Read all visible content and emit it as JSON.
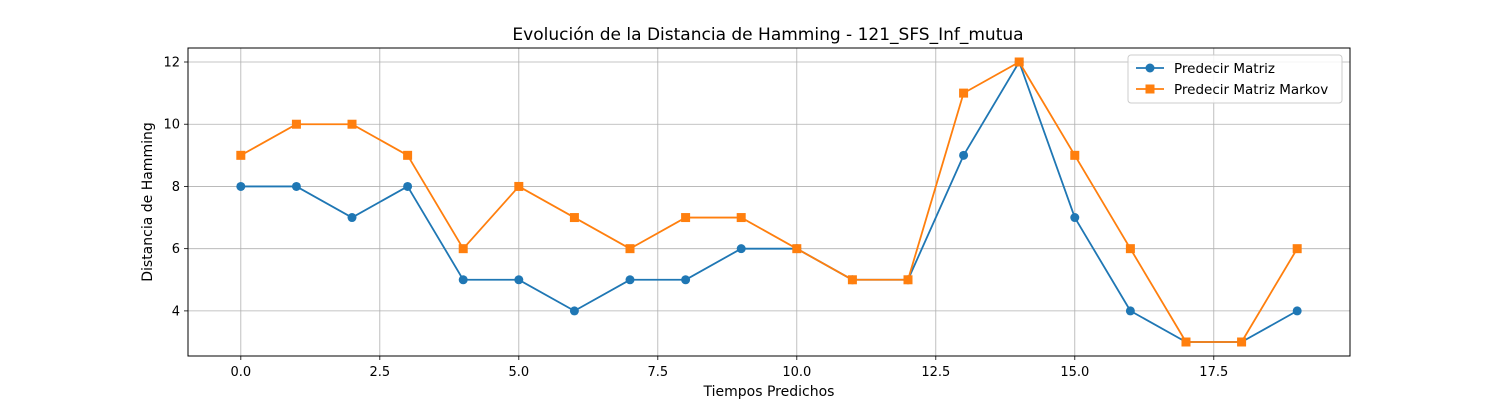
{
  "chart_data": {
    "type": "line",
    "title": "Evolución de la Distancia de Hamming - 121_SFS_Inf_mutua",
    "xlabel": "Tiempos Predichos",
    "ylabel": "Distancia de Hamming",
    "xlim": [
      -0.95,
      19.95
    ],
    "ylim": [
      2.55,
      12.45
    ],
    "xticks": [
      0.0,
      2.5,
      5.0,
      7.5,
      10.0,
      12.5,
      15.0,
      17.5
    ],
    "xtick_labels": [
      "0.0",
      "2.5",
      "5.0",
      "7.5",
      "10.0",
      "12.5",
      "15.0",
      "17.5"
    ],
    "yticks": [
      4,
      6,
      8,
      10,
      12
    ],
    "ytick_labels": [
      "4",
      "6",
      "8",
      "10",
      "12"
    ],
    "grid": true,
    "legend_position": "top-right",
    "x": [
      0,
      1,
      2,
      3,
      4,
      5,
      6,
      7,
      8,
      9,
      10,
      11,
      12,
      13,
      14,
      15,
      16,
      17,
      18,
      19
    ],
    "series": [
      {
        "name": "Predecir Matriz",
        "color": "#1f77b4",
        "marker": "circle",
        "values": [
          8,
          8,
          7,
          8,
          5,
          5,
          4,
          5,
          5,
          6,
          6,
          5,
          5,
          9,
          12,
          7,
          4,
          3,
          3,
          4
        ]
      },
      {
        "name": "Predecir Matriz Markov",
        "color": "#ff7f0e",
        "marker": "square",
        "values": [
          9,
          10,
          10,
          9,
          6,
          8,
          7,
          6,
          7,
          7,
          6,
          5,
          5,
          11,
          12,
          9,
          6,
          3,
          3,
          6
        ]
      }
    ]
  }
}
